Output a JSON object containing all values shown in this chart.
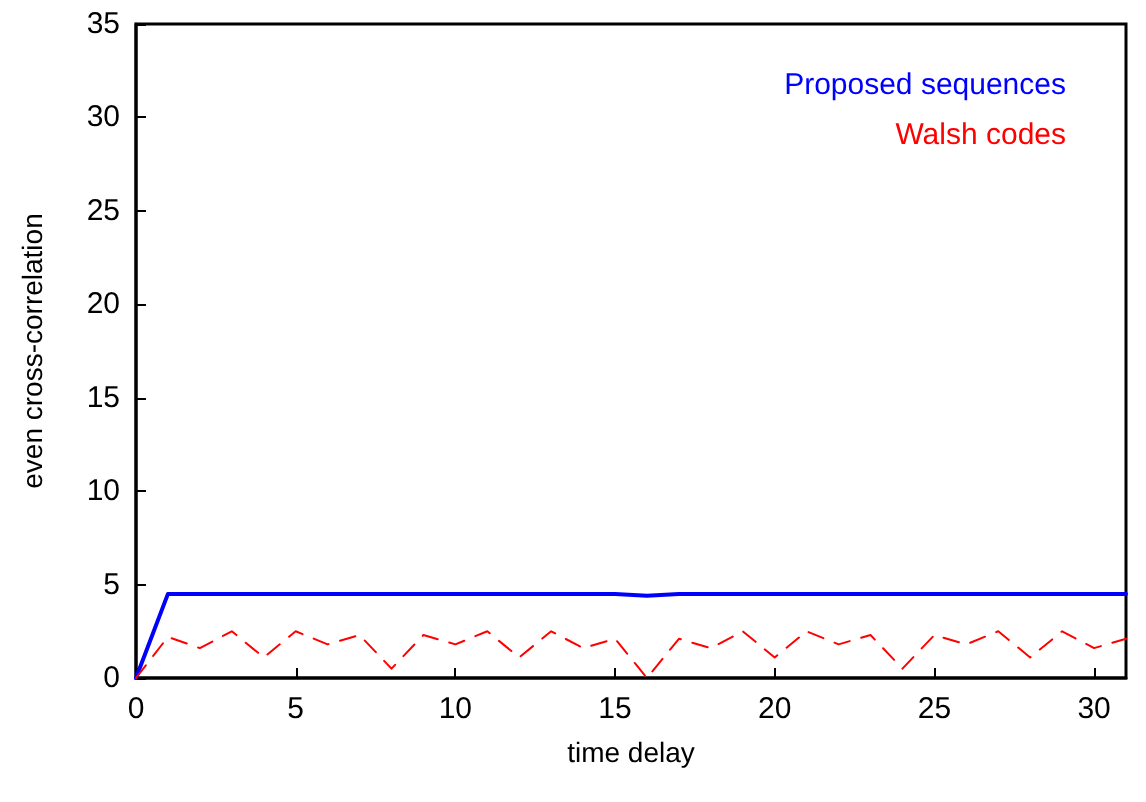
{
  "chart_data": {
    "type": "line",
    "xlabel": "time delay",
    "ylabel": "even cross-correlation",
    "x": [
      0,
      1,
      2,
      3,
      4,
      5,
      6,
      7,
      8,
      9,
      10,
      11,
      12,
      13,
      14,
      15,
      16,
      17,
      18,
      19,
      20,
      21,
      22,
      23,
      24,
      25,
      26,
      27,
      28,
      29,
      30,
      31
    ],
    "series": [
      {
        "name": "Proposed sequences",
        "color": "#0000ff",
        "line_style": "solid",
        "values": [
          0,
          4.5,
          4.5,
          4.5,
          4.5,
          4.5,
          4.5,
          4.5,
          4.5,
          4.5,
          4.5,
          4.5,
          4.5,
          4.5,
          4.5,
          4.5,
          4.4,
          4.5,
          4.5,
          4.5,
          4.5,
          4.5,
          4.5,
          4.5,
          4.5,
          4.5,
          4.5,
          4.5,
          4.5,
          4.5,
          4.5,
          4.5
        ]
      },
      {
        "name": "Walsh codes",
        "color": "#ff0000",
        "line_style": "dashed",
        "values": [
          0,
          2.2,
          1.6,
          2.5,
          1.1,
          2.5,
          1.8,
          2.3,
          0.5,
          2.3,
          1.8,
          2.5,
          1.1,
          2.5,
          1.6,
          2.1,
          0,
          2.1,
          1.6,
          2.5,
          1.1,
          2.5,
          1.8,
          2.3,
          0.5,
          2.3,
          1.8,
          2.5,
          1.1,
          2.5,
          1.6,
          2.1
        ]
      }
    ],
    "xlim": [
      0,
      31
    ],
    "xticks": [
      0,
      5,
      10,
      15,
      20,
      25,
      30
    ],
    "ylim": [
      0,
      35
    ],
    "yticks": [
      0,
      5,
      10,
      15,
      20,
      25,
      30,
      35
    ],
    "legend": "top right",
    "grid": false,
    "marker": "none"
  }
}
